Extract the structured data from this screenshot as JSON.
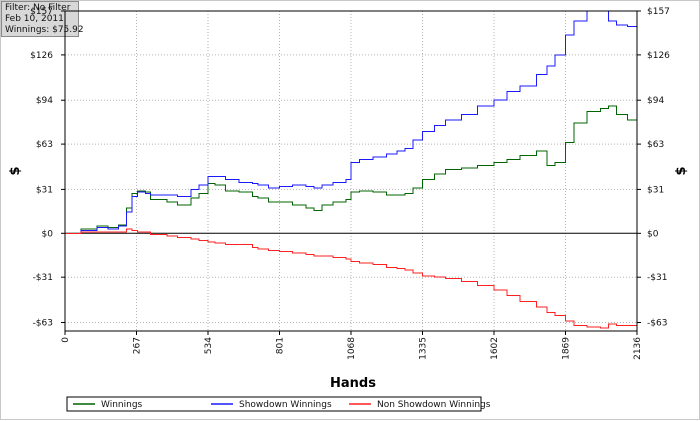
{
  "info": {
    "filter": "Filter: No Filter",
    "date": "Feb 10, 2011",
    "winnings": "Winnings: $75.92"
  },
  "chart_data": {
    "type": "line",
    "xlabel": "Hands",
    "ylabel_left": "$",
    "ylabel_right": "$",
    "xlim": [
      0,
      2136
    ],
    "ylim": [
      -69,
      157
    ],
    "x_ticks": [
      0,
      267,
      534,
      801,
      1068,
      1335,
      1602,
      1869,
      2136
    ],
    "y_ticks": [
      -63,
      -31,
      0,
      31,
      63,
      94,
      126,
      157
    ],
    "y_tick_labels": [
      "-$63",
      "-$31",
      "$0",
      "$31",
      "$63",
      "$94",
      "$126",
      "$157"
    ],
    "grid": true,
    "legend_position": "bottom",
    "series": [
      {
        "name": "Winnings",
        "color": "#006400",
        "x": [
          0,
          60,
          120,
          160,
          200,
          230,
          250,
          270,
          300,
          320,
          380,
          420,
          470,
          500,
          534,
          560,
          600,
          650,
          700,
          720,
          760,
          801,
          850,
          900,
          930,
          960,
          1000,
          1050,
          1068,
          1100,
          1150,
          1200,
          1240,
          1270,
          1300,
          1335,
          1380,
          1420,
          1480,
          1540,
          1602,
          1650,
          1700,
          1760,
          1800,
          1830,
          1869,
          1900,
          1950,
          2000,
          2030,
          2060,
          2100,
          2136
        ],
        "y": [
          0,
          3,
          5,
          4,
          6,
          18,
          28,
          30,
          29,
          24,
          22,
          20,
          25,
          28,
          35,
          34,
          30,
          29,
          26,
          25,
          22,
          22,
          20,
          18,
          16,
          20,
          22,
          24,
          29,
          30,
          29,
          27,
          27,
          28,
          32,
          38,
          42,
          45,
          46,
          48,
          50,
          52,
          55,
          58,
          48,
          50,
          64,
          78,
          86,
          88,
          90,
          84,
          80,
          76
        ]
      },
      {
        "name": "Showdown Winnings",
        "color": "#1a1aff",
        "x": [
          0,
          60,
          120,
          160,
          200,
          230,
          250,
          270,
          300,
          320,
          380,
          420,
          470,
          500,
          534,
          560,
          600,
          650,
          700,
          720,
          760,
          801,
          850,
          900,
          930,
          960,
          1000,
          1050,
          1068,
          1100,
          1150,
          1200,
          1240,
          1270,
          1300,
          1335,
          1380,
          1420,
          1480,
          1540,
          1602,
          1650,
          1700,
          1760,
          1800,
          1830,
          1869,
          1900,
          1950,
          2000,
          2030,
          2060,
          2100,
          2136
        ],
        "y": [
          0,
          2,
          4,
          3,
          5,
          15,
          26,
          29,
          28,
          27,
          27,
          26,
          31,
          34,
          40,
          40,
          38,
          36,
          35,
          34,
          32,
          33,
          34,
          33,
          32,
          34,
          36,
          38,
          50,
          52,
          54,
          56,
          58,
          60,
          66,
          72,
          76,
          80,
          84,
          90,
          94,
          100,
          104,
          112,
          118,
          126,
          140,
          150,
          157,
          157,
          150,
          147,
          146,
          146
        ]
      },
      {
        "name": "Non Showdown Winnings",
        "color": "#ff2020",
        "x": [
          0,
          60,
          120,
          160,
          200,
          230,
          250,
          270,
          300,
          320,
          380,
          420,
          470,
          500,
          534,
          560,
          600,
          650,
          700,
          720,
          760,
          801,
          850,
          900,
          930,
          960,
          1000,
          1050,
          1068,
          1100,
          1150,
          1200,
          1240,
          1270,
          1300,
          1335,
          1380,
          1420,
          1480,
          1540,
          1602,
          1650,
          1700,
          1760,
          1800,
          1830,
          1869,
          1900,
          1950,
          2000,
          2030,
          2060,
          2100,
          2136
        ],
        "y": [
          0,
          1,
          1,
          1,
          1,
          3,
          2,
          1,
          1,
          -1,
          -2,
          -3,
          -4,
          -5,
          -6,
          -7,
          -8,
          -8,
          -10,
          -11,
          -12,
          -13,
          -14,
          -15,
          -16,
          -16,
          -17,
          -18,
          -20,
          -21,
          -22,
          -24,
          -25,
          -26,
          -28,
          -30,
          -31,
          -32,
          -34,
          -37,
          -40,
          -44,
          -48,
          -52,
          -56,
          -58,
          -62,
          -65,
          -66,
          -67,
          -64,
          -65,
          -65,
          -66
        ]
      }
    ]
  }
}
